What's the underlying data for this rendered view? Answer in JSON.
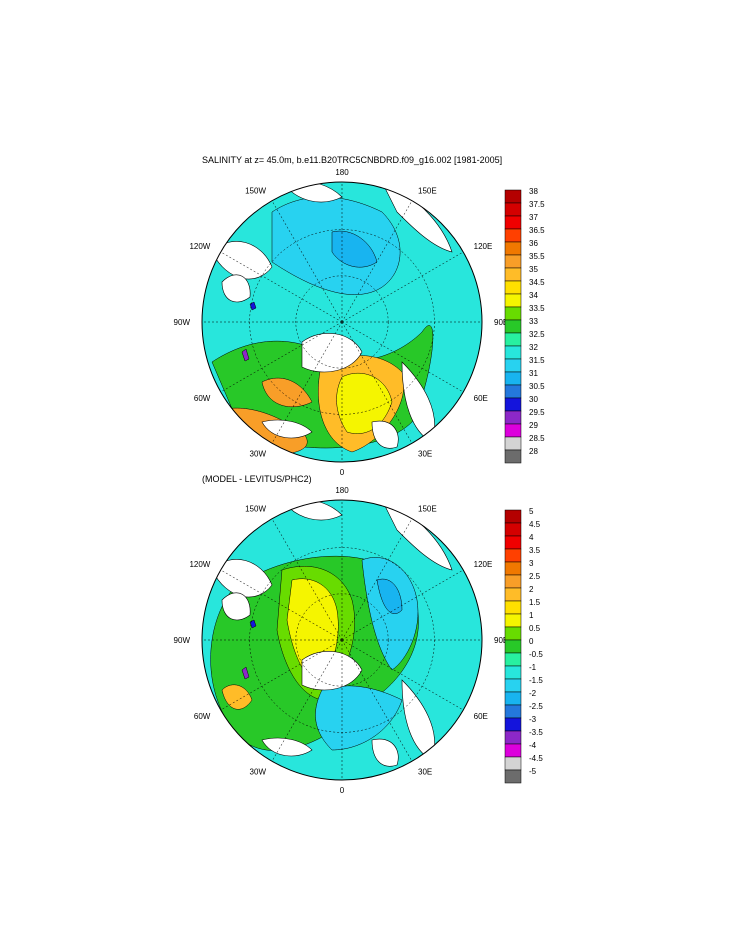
{
  "main_title": "SALINITY at z=  45.0m, b.e11.B20TRC5CNBDRD.f09_g16.002 [1981-2005]",
  "sub_title": "(MODEL - LEVITUS/PHC2)",
  "meridian_labels": [
    "180",
    "150E",
    "120E",
    "90E",
    "60E",
    "30E",
    "0",
    "30W",
    "60W",
    "90W",
    "120W",
    "150W"
  ],
  "colorbars": [
    {
      "name": "salinity",
      "labels": [
        "38",
        "37.5",
        "37",
        "36.5",
        "36",
        "35.5",
        "35",
        "34.5",
        "34",
        "33.5",
        "33",
        "32.5",
        "32",
        "31.5",
        "31",
        "30.5",
        "30",
        "29.5",
        "29",
        "28.5",
        "28"
      ],
      "colors": [
        "#b40000",
        "#d40000",
        "#f00000",
        "#ff4000",
        "#f07800",
        "#f89e28",
        "#ffbc28",
        "#ffe000",
        "#f5f500",
        "#68dc00",
        "#28c828",
        "#28f0a0",
        "#28e6dc",
        "#28d2f0",
        "#18b4f0",
        "#2478dc",
        "#1414dc",
        "#8c28c8",
        "#dc00dc",
        "#d4d4d4",
        "#6c6c6c"
      ]
    },
    {
      "name": "difference",
      "labels": [
        "5",
        "4.5",
        "4",
        "3.5",
        "3",
        "2.5",
        "2",
        "1.5",
        "1",
        "0.5",
        "0",
        "-0.5",
        "-1",
        "-1.5",
        "-2",
        "-2.5",
        "-3",
        "-3.5",
        "-4",
        "-4.5",
        "-5"
      ],
      "colors": [
        "#b40000",
        "#d40000",
        "#f00000",
        "#ff4000",
        "#f07800",
        "#f89e28",
        "#ffbc28",
        "#ffe000",
        "#f5f500",
        "#68dc00",
        "#28c828",
        "#28f0a0",
        "#28e6dc",
        "#28d2f0",
        "#18b4f0",
        "#2478dc",
        "#1414dc",
        "#8c28c8",
        "#dc00dc",
        "#d4d4d4",
        "#6c6c6c"
      ]
    }
  ],
  "fill_colors": {
    "ocean_bg": "#28e6dc",
    "land": "#ffffff",
    "green": "#28c828",
    "lime": "#68dc00",
    "yellow": "#f5f500",
    "gold": "#ffbc28",
    "orange": "#f89e28",
    "sky": "#28d2f0",
    "blue": "#18b4f0",
    "deep_blue": "#1414dc",
    "purple": "#8c28c8"
  }
}
